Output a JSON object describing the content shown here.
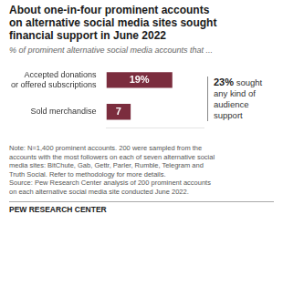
{
  "chart_data": {
    "type": "bar",
    "orientation": "horizontal",
    "title": "About one-in-four prominent accounts\non alternative social media sites sought\nfinancial support in June 2022",
    "subtitle": "% of prominent alternative social media accounts that ...",
    "categories": [
      "Accepted donations\nor offered subscriptions",
      "Sold merchandise"
    ],
    "values": [
      19,
      7
    ],
    "value_labels": [
      "19%",
      "7"
    ],
    "data_labels": true,
    "color": "#7b2d3e",
    "xlim": [
      0,
      28
    ],
    "grid": false,
    "tick_labels": "y",
    "annotations": [
      "23% sought\nany kind of\naudience\nsupport"
    ],
    "note": "Note: N=1,400 prominent accounts. 200 were sampled from the\naccounts with the most followers on each of seven alternative social\nmedia sites: BitChute, Gab, Gettr, Parler, Rumble, Telegram and\nTruth Social. Refer to methodology for more details.\nSource: Pew Research Center analysis of 200 prominent accounts\non each alternative social media site conducted June 2022.",
    "footer": "PEW RESEARCH CENTER"
  }
}
